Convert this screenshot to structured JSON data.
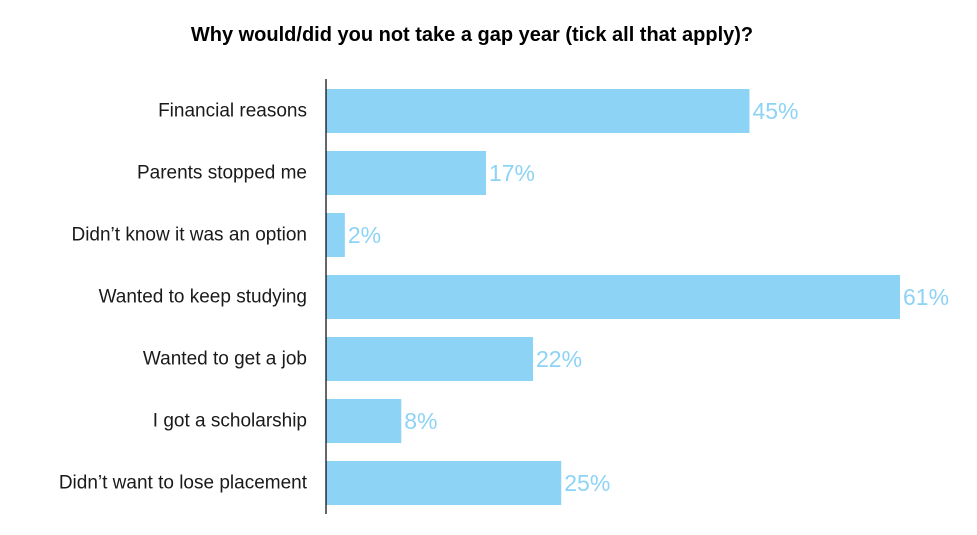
{
  "chart_data": {
    "type": "bar",
    "orientation": "horizontal",
    "title": "Why would/did you not take a gap year (tick all that apply)?",
    "xlabel": "",
    "ylabel": "",
    "categories": [
      "Financial reasons",
      "Parents stopped me",
      "Didn’t know it was an option",
      "Wanted to keep studying",
      "Wanted to get a job",
      "I got a scholarship",
      "Didn’t want to lose placement"
    ],
    "values": [
      45,
      17,
      2,
      61,
      22,
      8,
      25
    ],
    "value_labels": [
      "45%",
      "17%",
      "2%",
      "61%",
      "22%",
      "8%",
      "25%"
    ],
    "value_unit": "%",
    "xlim": [
      0,
      61
    ],
    "grid": false,
    "legend": "none",
    "colors": {
      "bar": "#8dd3f5",
      "value_label": "#8dd3f5",
      "axis": "#000000",
      "title": "#000000",
      "category_label": "#1a1a1a"
    }
  }
}
